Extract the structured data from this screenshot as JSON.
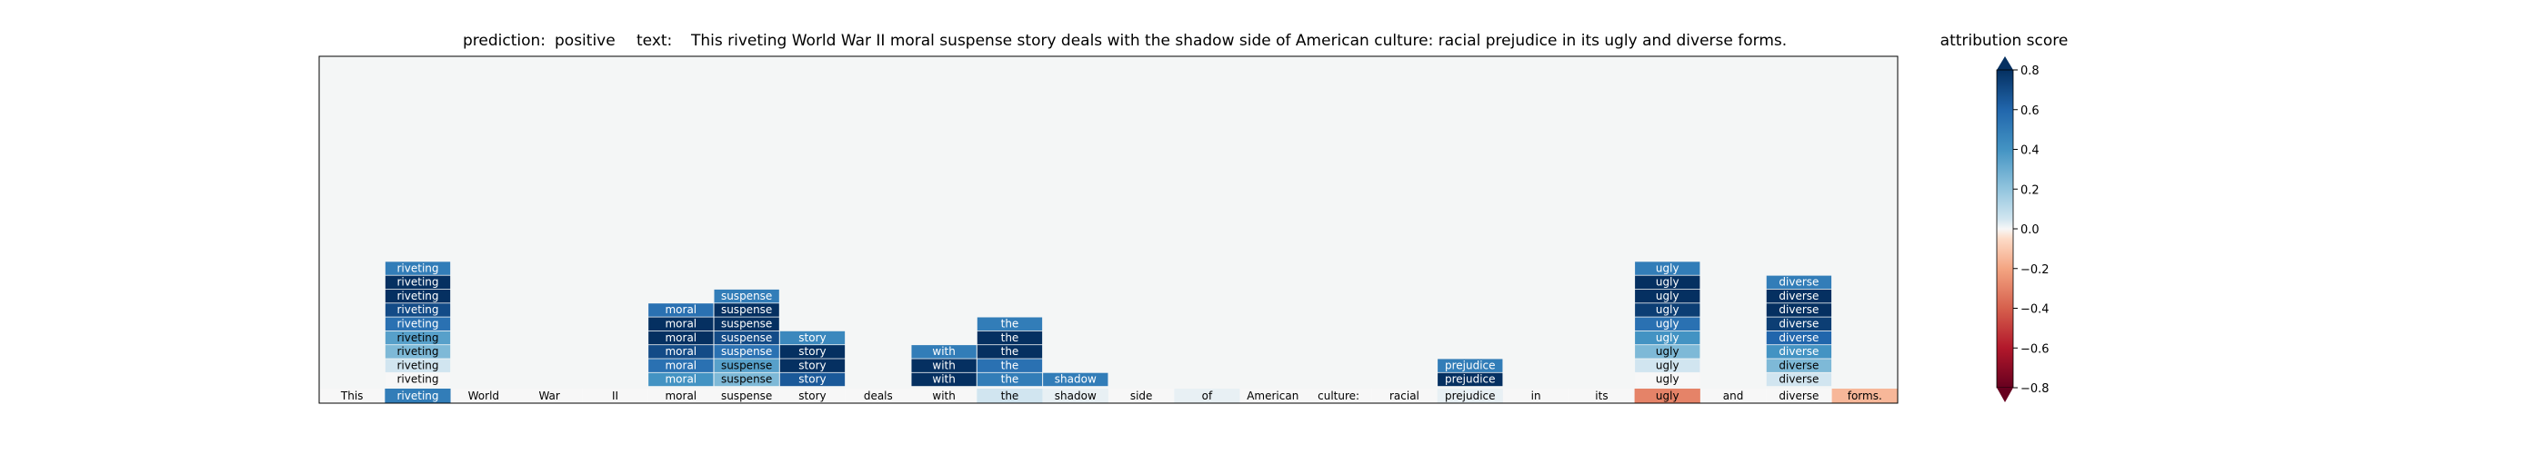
{
  "title": {
    "prediction_label": "prediction:",
    "prediction_value": "positive",
    "text_label": "text:",
    "text_value": "This riveting World War II moral suspense story deals with the shadow side of American culture: racial prejudice in its ugly and diverse forms."
  },
  "colorbar": {
    "title": "attribution score",
    "ticks": [
      -0.8,
      -0.6,
      -0.4,
      -0.2,
      0.0,
      0.2,
      0.4,
      0.6,
      0.8
    ],
    "tick_labels": [
      "−0.8",
      "−0.6",
      "−0.4",
      "−0.2",
      "0.0",
      "0.2",
      "0.4",
      "0.6",
      "0.8"
    ],
    "range": [
      -0.8,
      0.8
    ],
    "colormap": "RdBu"
  },
  "chart_data": {
    "type": "heatmap",
    "tokens": [
      "This",
      "riveting",
      "World",
      "War",
      "II",
      "moral",
      "suspense",
      "story",
      "deals",
      "with",
      "the",
      "shadow",
      "side",
      "of",
      "American",
      "culture:",
      "racial",
      "prejudice",
      "in",
      "its",
      "ugly",
      "and",
      "diverse",
      "forms."
    ],
    "base_scores": [
      0.0,
      0.5,
      0.0,
      0.0,
      0.0,
      0.0,
      0.0,
      0.0,
      0.0,
      0.0,
      0.05,
      0.02,
      0.0,
      0.02,
      0.0,
      0.0,
      0.0,
      0.02,
      0.0,
      0.0,
      -0.3,
      0.0,
      0.0,
      -0.15
    ],
    "stacks": [
      {
        "token": "riveting",
        "scores": [
          0.5,
          0.9,
          0.9,
          0.7,
          0.55,
          0.35,
          0.25,
          0.05,
          0.0
        ]
      },
      {
        "token": "moral",
        "scores": [
          0.55,
          0.9,
          0.9,
          0.7,
          0.55,
          0.4
        ]
      },
      {
        "token": "suspense",
        "scores": [
          0.5,
          0.9,
          0.85,
          0.7,
          0.55,
          0.35,
          0.25
        ]
      },
      {
        "token": "story",
        "scores": [
          0.45,
          0.9,
          0.85,
          0.65
        ]
      },
      {
        "token": "with",
        "scores": [
          0.5,
          0.9,
          0.95
        ]
      },
      {
        "token": "the",
        "scores": [
          0.5,
          0.9,
          0.85,
          0.55,
          0.5
        ]
      },
      {
        "token": "shadow",
        "scores": [
          0.5
        ]
      },
      {
        "token": "prejudice",
        "scores": [
          0.5,
          0.95
        ]
      },
      {
        "token": "ugly",
        "scores": [
          0.5,
          0.95,
          0.95,
          0.75,
          0.55,
          0.4,
          0.25,
          0.05,
          0.0
        ]
      },
      {
        "token": "diverse",
        "scores": [
          0.5,
          0.9,
          0.9,
          0.75,
          0.6,
          0.4,
          0.25,
          0.05
        ]
      }
    ]
  }
}
